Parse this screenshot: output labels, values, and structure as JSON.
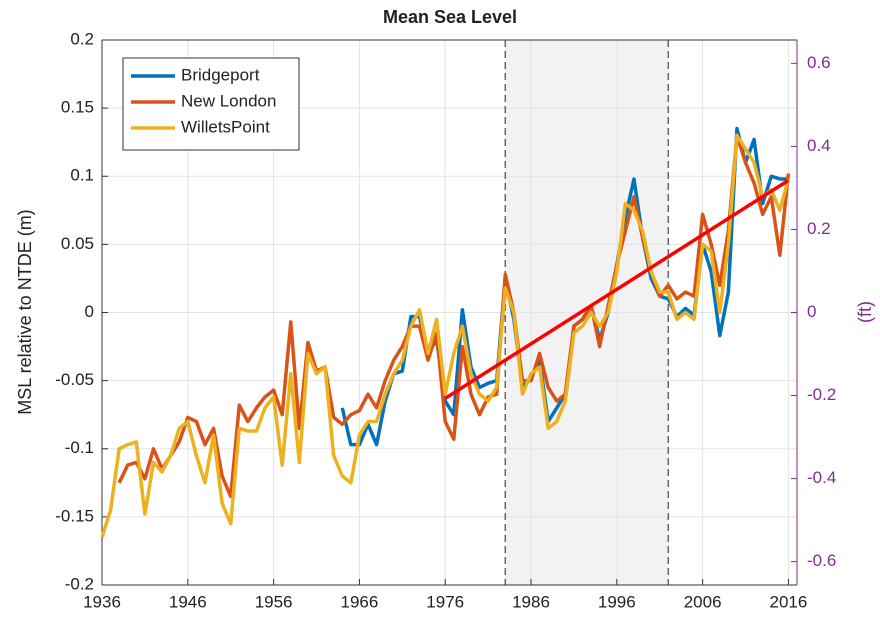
{
  "chart_data": {
    "type": "line",
    "title": "Mean Sea Level",
    "y_label": "MSL relative to NTDE (m)",
    "y2_label": "(ft)",
    "x": [
      1936,
      1937,
      1938,
      1939,
      1940,
      1941,
      1942,
      1943,
      1944,
      1945,
      1946,
      1947,
      1948,
      1949,
      1950,
      1951,
      1952,
      1953,
      1954,
      1955,
      1956,
      1957,
      1958,
      1959,
      1960,
      1961,
      1962,
      1963,
      1964,
      1965,
      1966,
      1967,
      1968,
      1969,
      1970,
      1971,
      1972,
      1973,
      1974,
      1975,
      1976,
      1977,
      1978,
      1979,
      1980,
      1981,
      1982,
      1983,
      1984,
      1985,
      1986,
      1987,
      1988,
      1989,
      1990,
      1991,
      1992,
      1993,
      1994,
      1995,
      1996,
      1997,
      1998,
      1999,
      2000,
      2001,
      2002,
      2003,
      2004,
      2005,
      2006,
      2007,
      2008,
      2009,
      2010,
      2011,
      2012,
      2013,
      2014,
      2015,
      2016
    ],
    "series": [
      {
        "name": "Bridgeport",
        "color": "#0072BD",
        "values": [
          null,
          null,
          null,
          null,
          null,
          null,
          null,
          null,
          null,
          null,
          null,
          null,
          null,
          null,
          null,
          null,
          null,
          null,
          null,
          null,
          null,
          null,
          null,
          null,
          null,
          null,
          null,
          null,
          -0.07,
          -0.097,
          -0.097,
          -0.082,
          -0.097,
          -0.065,
          -0.045,
          -0.043,
          -0.003,
          -0.003,
          -0.03,
          -0.02,
          -0.065,
          -0.075,
          0.002,
          -0.04,
          -0.055,
          -0.052,
          -0.05,
          0.025,
          -0.005,
          -0.055,
          -0.048,
          -0.035,
          -0.08,
          -0.07,
          -0.06,
          -0.01,
          -0.005,
          0.005,
          -0.02,
          0.0,
          0.035,
          0.07,
          0.098,
          0.055,
          0.025,
          0.012,
          0.01,
          -0.003,
          0.003,
          -0.002,
          0.05,
          0.03,
          -0.017,
          0.015,
          0.135,
          0.11,
          0.127,
          0.08,
          0.1,
          0.098,
          0.098
        ]
      },
      {
        "name": "New London",
        "color": "#D95319",
        "values": [
          null,
          null,
          -0.125,
          -0.112,
          -0.11,
          -0.122,
          -0.1,
          -0.115,
          -0.105,
          -0.095,
          -0.077,
          -0.08,
          -0.097,
          -0.085,
          -0.12,
          -0.135,
          -0.068,
          -0.08,
          -0.07,
          -0.062,
          -0.057,
          -0.075,
          -0.007,
          -0.085,
          -0.022,
          -0.043,
          -0.04,
          -0.077,
          -0.082,
          -0.075,
          -0.072,
          -0.06,
          -0.07,
          -0.05,
          -0.035,
          -0.025,
          -0.01,
          -0.01,
          -0.035,
          -0.015,
          -0.08,
          -0.093,
          -0.025,
          -0.06,
          -0.075,
          -0.062,
          -0.06,
          0.028,
          0.0,
          -0.05,
          -0.05,
          -0.03,
          -0.055,
          -0.065,
          -0.06,
          -0.01,
          -0.005,
          0.005,
          -0.025,
          0.005,
          0.035,
          0.06,
          0.085,
          0.055,
          0.03,
          0.012,
          0.02,
          0.01,
          0.015,
          0.012,
          0.072,
          0.05,
          0.02,
          0.06,
          0.13,
          0.11,
          0.095,
          0.072,
          0.085,
          0.042,
          0.102
        ]
      },
      {
        "name": "WilletsPoint",
        "color": "#EDB120",
        "values": [
          -0.165,
          -0.145,
          -0.1,
          -0.097,
          -0.095,
          -0.148,
          -0.11,
          -0.117,
          -0.105,
          -0.085,
          -0.08,
          -0.105,
          -0.125,
          -0.09,
          -0.14,
          -0.155,
          -0.085,
          -0.087,
          -0.087,
          -0.07,
          -0.062,
          -0.112,
          -0.045,
          -0.11,
          -0.03,
          -0.045,
          -0.04,
          -0.105,
          -0.12,
          -0.125,
          -0.09,
          -0.08,
          -0.08,
          -0.06,
          -0.045,
          -0.035,
          -0.01,
          0.002,
          -0.03,
          -0.005,
          -0.06,
          -0.03,
          -0.01,
          -0.045,
          -0.06,
          -0.065,
          -0.055,
          0.018,
          0.0,
          -0.06,
          -0.045,
          -0.04,
          -0.085,
          -0.08,
          -0.065,
          -0.015,
          -0.01,
          0.0,
          -0.01,
          0.0,
          0.03,
          0.08,
          0.075,
          0.06,
          0.03,
          0.015,
          0.015,
          -0.005,
          0.0,
          -0.005,
          0.05,
          0.045,
          0.0,
          0.05,
          0.13,
          0.12,
          0.11,
          0.085,
          0.09,
          0.075,
          0.098
        ]
      }
    ],
    "trend": {
      "color": "#FF0000",
      "x": [
        1976,
        2016
      ],
      "values": [
        -0.063,
        0.097
      ]
    },
    "shaded_region": [
      1983,
      2002
    ],
    "xlim": [
      1936,
      2017
    ],
    "xticks": [
      1936,
      1946,
      1956,
      1966,
      1976,
      1986,
      1996,
      2006,
      2016
    ],
    "ylim": [
      -0.2,
      0.2
    ],
    "yticks": [
      -0.2,
      -0.15,
      -0.1,
      -0.05,
      0,
      0.05,
      0.1,
      0.15,
      0.2
    ],
    "y2lim": [
      -0.6562,
      0.6562
    ],
    "y2ticks": [
      -0.6,
      -0.4,
      -0.2,
      0,
      0.2,
      0.4,
      0.6
    ],
    "y2_color": "#7E2F8E",
    "grid": true,
    "legend": "upper-left"
  }
}
